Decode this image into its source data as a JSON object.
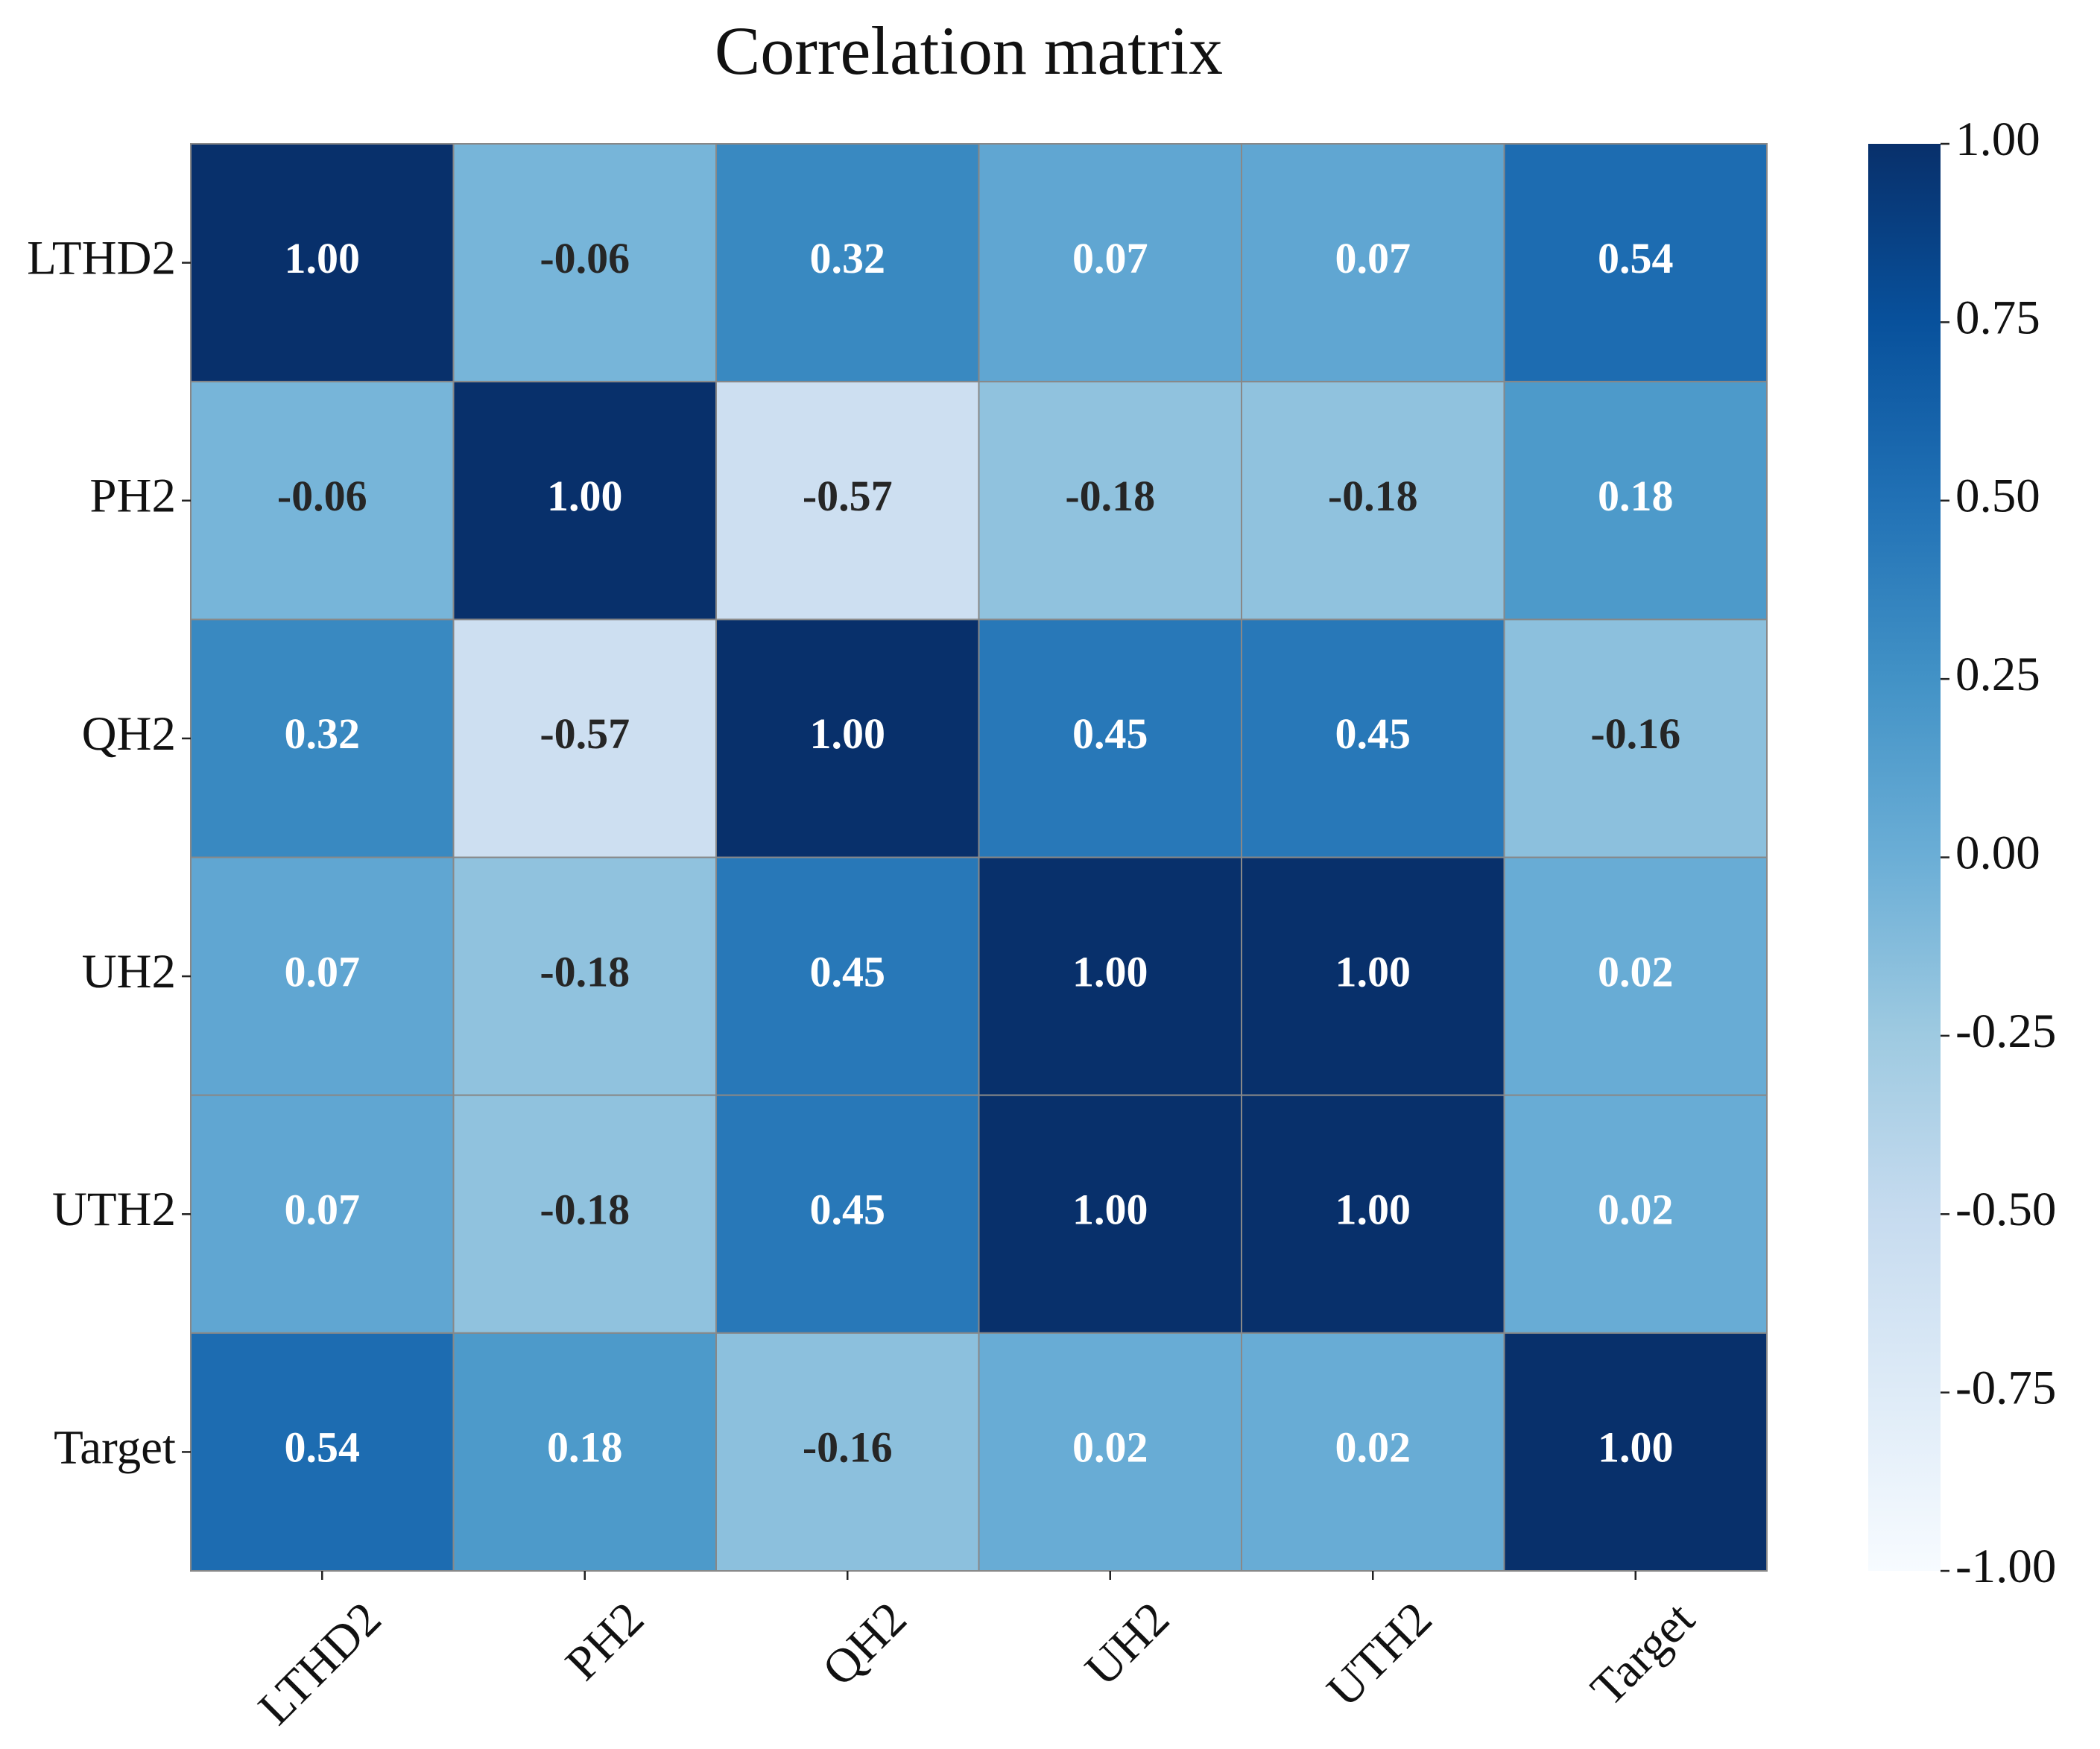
{
  "chart_data": {
    "type": "heatmap",
    "title": "Correlation matrix",
    "x_categories": [
      "LTHD2",
      "PH2",
      "QH2",
      "UH2",
      "UTH2",
      "Target"
    ],
    "y_categories": [
      "LTHD2",
      "PH2",
      "QH2",
      "UH2",
      "UTH2",
      "Target"
    ],
    "values": [
      [
        1,
        -0.06,
        0.32,
        0.07,
        0.07,
        0.54
      ],
      [
        -0.06,
        1,
        -0.57,
        -0.18,
        -0.18,
        0.18
      ],
      [
        0.32,
        -0.57,
        1,
        0.45,
        0.45,
        -0.16
      ],
      [
        0.07,
        -0.18,
        0.45,
        1,
        1,
        0.02
      ],
      [
        0.07,
        -0.18,
        0.45,
        1,
        1,
        0.02
      ],
      [
        0.54,
        0.18,
        -0.16,
        0.02,
        0.02,
        1
      ]
    ],
    "value_labels": [
      [
        "1.00",
        "-0.06",
        "0.32",
        "0.07",
        "0.07",
        "0.54"
      ],
      [
        "-0.06",
        "1.00",
        "-0.57",
        "-0.18",
        "-0.18",
        "0.18"
      ],
      [
        "0.32",
        "-0.57",
        "1.00",
        "0.45",
        "0.45",
        "-0.16"
      ],
      [
        "0.07",
        "-0.18",
        "0.45",
        "1.00",
        "1.00",
        "0.02"
      ],
      [
        "0.07",
        "-0.18",
        "0.45",
        "1.00",
        "1.00",
        "0.02"
      ],
      [
        "0.54",
        "0.18",
        "-0.16",
        "0.02",
        "0.02",
        "1.00"
      ]
    ],
    "colormap": "Blues",
    "zlim": [
      -1,
      1
    ],
    "zticks": [
      {
        "value": 1,
        "label": "1.00"
      },
      {
        "value": 0.75,
        "label": "0.75"
      },
      {
        "value": 0.5,
        "label": "0.50"
      },
      {
        "value": 0.25,
        "label": "0.25"
      },
      {
        "value": 0,
        "label": "0.00"
      },
      {
        "value": -0.25,
        "label": "-0.25"
      },
      {
        "value": -0.5,
        "label": "-0.50"
      },
      {
        "value": -0.75,
        "label": "-0.75"
      },
      {
        "value": -1,
        "label": "-1.00"
      }
    ]
  }
}
